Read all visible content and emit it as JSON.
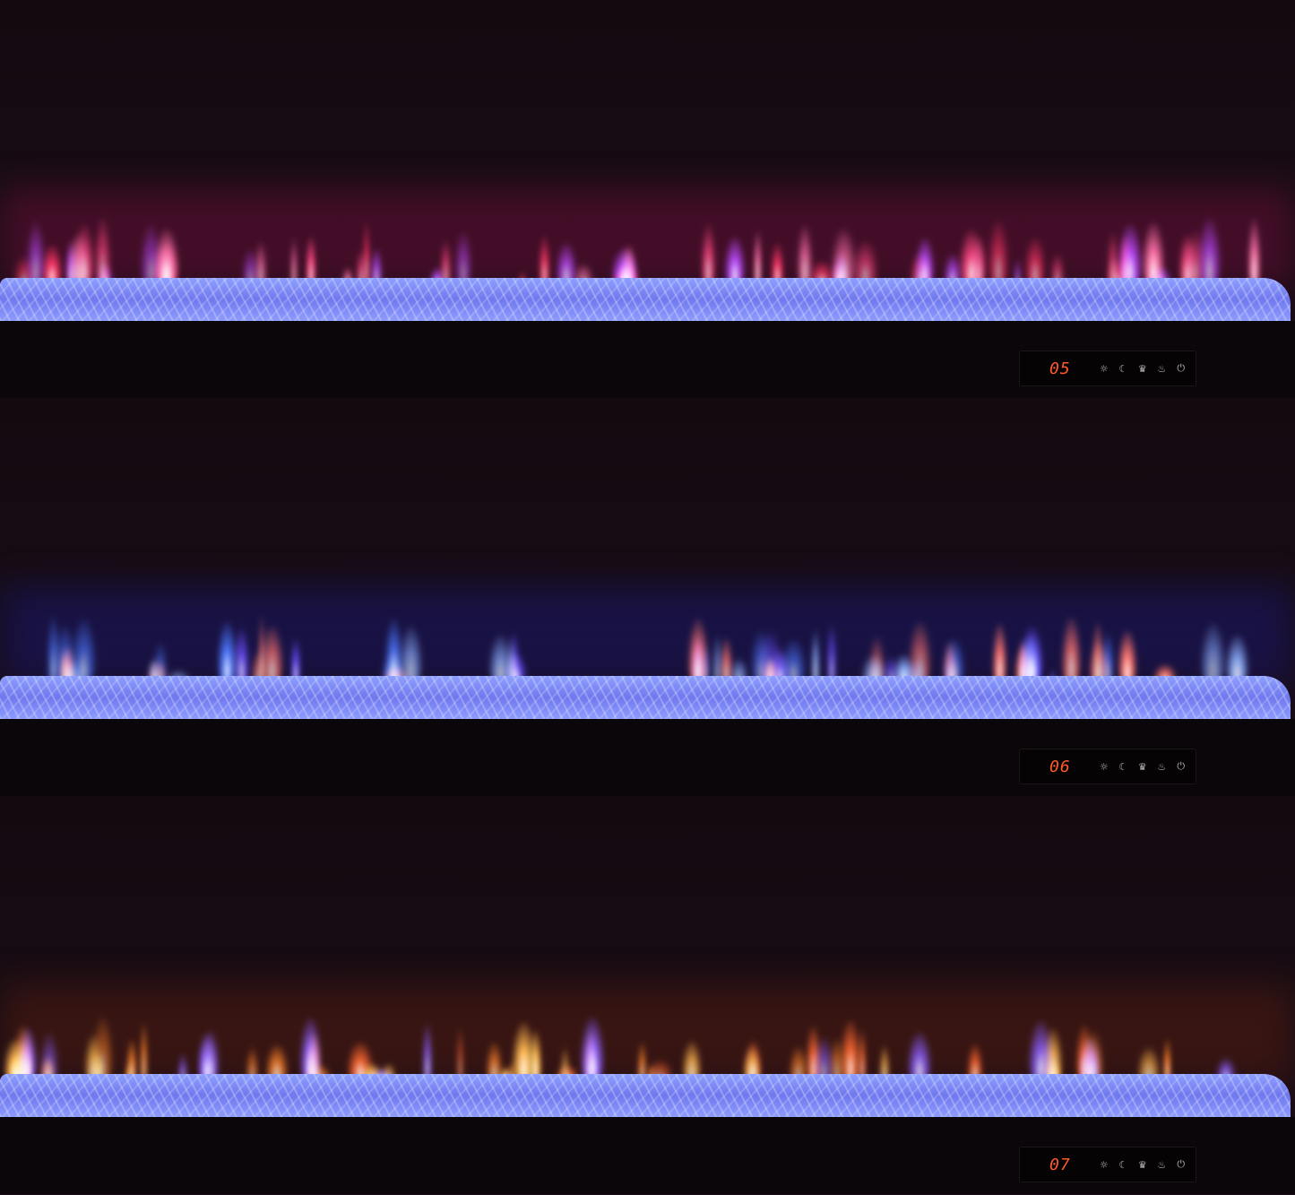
{
  "panels": [
    {
      "display": "05",
      "flame_colors": [
        "#ff2a4a",
        "#ff3d6a",
        "#ff6a9a",
        "#a040ff"
      ],
      "glow": "#7a1040"
    },
    {
      "display": "06",
      "flame_colors": [
        "#3a6cff",
        "#7fa8ff",
        "#ff6a3a",
        "#5a40ff"
      ],
      "glow": "#1a1a80"
    },
    {
      "display": "07",
      "flame_colors": [
        "#ff7a1a",
        "#ffb040",
        "#ff5a20",
        "#6a50ff"
      ],
      "glow": "#602010"
    }
  ],
  "controls": [
    {
      "name": "brightness-icon",
      "glyph": "☼"
    },
    {
      "name": "timer-moon-icon",
      "glyph": "☾"
    },
    {
      "name": "crown-mode-icon",
      "glyph": "♛"
    },
    {
      "name": "flame-icon",
      "glyph": "♨"
    },
    {
      "name": "power-icon",
      "glyph": "⏻"
    }
  ]
}
